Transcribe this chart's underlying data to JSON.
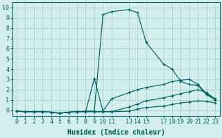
{
  "xlabel": "Humidex (Indice chaleur)",
  "bg_color": "#d4eeee",
  "grid_color": "#aad4d4",
  "line_color": "#006060",
  "xlim": [
    -0.5,
    23.5
  ],
  "ylim": [
    -0.55,
    10.5
  ],
  "xticks": [
    0,
    1,
    2,
    3,
    4,
    5,
    6,
    7,
    8,
    9,
    10,
    11,
    13,
    14,
    15,
    17,
    18,
    19,
    20,
    21,
    22,
    23
  ],
  "yticks": [
    0,
    1,
    2,
    3,
    4,
    5,
    6,
    7,
    8,
    9,
    10
  ],
  "xlabel_fontsize": 7,
  "tick_fontsize": 6,
  "series": [
    {
      "x": [
        0,
        1,
        2,
        3,
        4,
        5,
        6,
        7,
        8,
        9,
        10,
        11,
        13,
        14,
        15,
        17,
        18,
        19,
        20,
        21,
        22,
        23
      ],
      "y": [
        -0.1,
        -0.15,
        -0.15,
        -0.15,
        -0.2,
        -0.3,
        -0.2,
        -0.15,
        -0.1,
        -0.1,
        9.3,
        9.6,
        9.8,
        9.5,
        6.6,
        4.5,
        4.0,
        2.8,
        2.5,
        2.4,
        1.5,
        1.0
      ]
    },
    {
      "x": [
        0,
        1,
        2,
        3,
        4,
        5,
        6,
        7,
        8,
        9,
        10,
        11,
        13,
        14,
        15,
        17,
        18,
        19,
        20,
        21,
        22,
        23
      ],
      "y": [
        -0.1,
        -0.15,
        -0.15,
        -0.15,
        -0.2,
        -0.3,
        -0.2,
        -0.15,
        -0.15,
        3.1,
        -0.1,
        1.1,
        1.7,
        2.0,
        2.2,
        2.5,
        2.8,
        2.9,
        3.0,
        2.5,
        1.6,
        1.0
      ]
    },
    {
      "x": [
        0,
        1,
        2,
        3,
        4,
        5,
        6,
        7,
        8,
        9,
        10,
        11,
        13,
        14,
        15,
        17,
        18,
        19,
        20,
        21,
        22,
        23
      ],
      "y": [
        -0.1,
        -0.15,
        -0.15,
        -0.15,
        -0.2,
        -0.3,
        -0.2,
        -0.15,
        -0.15,
        -0.15,
        -0.15,
        -0.15,
        0.3,
        0.6,
        0.9,
        1.2,
        1.4,
        1.6,
        1.8,
        2.0,
        1.7,
        1.1
      ]
    },
    {
      "x": [
        0,
        1,
        2,
        3,
        4,
        5,
        6,
        7,
        8,
        9,
        10,
        11,
        13,
        14,
        15,
        17,
        18,
        19,
        20,
        21,
        22,
        23
      ],
      "y": [
        -0.1,
        -0.15,
        -0.15,
        -0.15,
        -0.2,
        -0.3,
        -0.2,
        -0.15,
        -0.15,
        -0.15,
        -0.15,
        -0.15,
        -0.1,
        0.1,
        0.25,
        0.4,
        0.55,
        0.7,
        0.8,
        0.9,
        0.85,
        0.7
      ]
    }
  ]
}
